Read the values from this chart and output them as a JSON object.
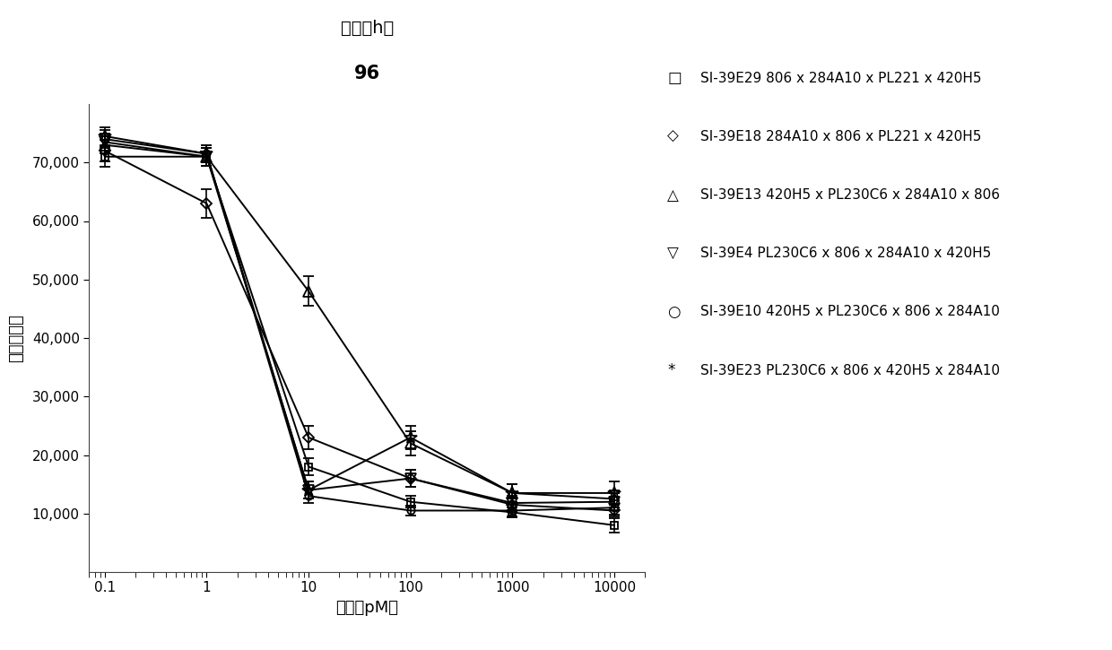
{
  "title_line1": "时间（h）",
  "title_line2": "96",
  "xlabel": "治疗（pM）",
  "ylabel": "肿瘾细胞数",
  "x_ticks": [
    0.1,
    1,
    10,
    100,
    1000,
    10000
  ],
  "x_tick_labels": [
    "0.1",
    "1",
    "10",
    "100",
    "1000",
    "10000"
  ],
  "ylim": [
    0,
    80000
  ],
  "y_ticks": [
    10000,
    20000,
    30000,
    40000,
    50000,
    60000,
    70000
  ],
  "series": [
    {
      "label": "SI-39E29 806 x 284A10 x PL221 x 420H5",
      "marker": "s",
      "x": [
        0.1,
        1,
        10,
        100,
        1000,
        10000
      ],
      "y": [
        71000,
        71000,
        18000,
        12000,
        10200,
        8000
      ],
      "yerr": [
        1800,
        1500,
        1500,
        1000,
        800,
        1200
      ]
    },
    {
      "label": "SI-39E18 284A10 x 806 x PL221 x 420H5",
      "marker": "D",
      "x": [
        0.1,
        1,
        10,
        100,
        1000,
        10000
      ],
      "y": [
        72000,
        63000,
        23000,
        16000,
        11500,
        10500
      ],
      "yerr": [
        1800,
        2500,
        2000,
        1500,
        1200,
        1000
      ]
    },
    {
      "label": "SI-39E13 420H5 x PL230C6 x 284A10 x 806",
      "marker": "^",
      "x": [
        0.1,
        1,
        10,
        100,
        1000,
        10000
      ],
      "y": [
        73000,
        71000,
        48000,
        22000,
        13500,
        12500
      ],
      "yerr": [
        1500,
        1500,
        2500,
        2000,
        1500,
        1500
      ]
    },
    {
      "label": "SI-39E4 PL230C6 x 806 x 284A10 x 420H5",
      "marker": "v",
      "x": [
        0.1,
        1,
        10,
        100,
        1000,
        10000
      ],
      "y": [
        73500,
        71000,
        14000,
        16000,
        11800,
        12000
      ],
      "yerr": [
        1500,
        1500,
        1500,
        1500,
        1200,
        1500
      ]
    },
    {
      "label": "SI-39E10 420H5 x PL230C6 x 806 x 284A10",
      "marker": "o",
      "x": [
        0.1,
        1,
        10,
        100,
        1000,
        10000
      ],
      "y": [
        74000,
        71500,
        13000,
        10500,
        10500,
        11000
      ],
      "yerr": [
        1500,
        1500,
        1200,
        800,
        1000,
        1200
      ]
    },
    {
      "label": "SI-39E23 PL230C6 x 806 x 420H5 x 284A10",
      "marker": "*",
      "x": [
        0.1,
        1,
        10,
        100,
        1000,
        10000
      ],
      "y": [
        74500,
        71500,
        14000,
        23000,
        13500,
        13500
      ],
      "yerr": [
        1500,
        1500,
        1500,
        2000,
        1500,
        2000
      ]
    }
  ],
  "legend_markers": [
    "□",
    "◇",
    "△",
    "▽",
    "○",
    "*"
  ],
  "line_color": "#000000",
  "background_color": "#ffffff",
  "title_fontsize": 14,
  "label_fontsize": 13,
  "tick_fontsize": 11,
  "legend_fontsize": 11
}
